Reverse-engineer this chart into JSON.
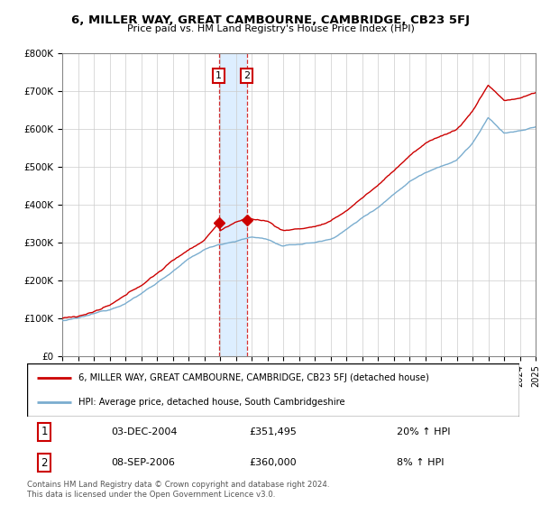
{
  "title": "6, MILLER WAY, GREAT CAMBOURNE, CAMBRIDGE, CB23 5FJ",
  "subtitle": "Price paid vs. HM Land Registry's House Price Index (HPI)",
  "legend_line1": "6, MILLER WAY, GREAT CAMBOURNE, CAMBRIDGE, CB23 5FJ (detached house)",
  "legend_line2": "HPI: Average price, detached house, South Cambridgeshire",
  "sale1_date": "03-DEC-2004",
  "sale1_price": "£351,495",
  "sale1_hpi": "20% ↑ HPI",
  "sale1_year": 2004.92,
  "sale2_date": "08-SEP-2006",
  "sale2_price": "£360,000",
  "sale2_hpi": "8% ↑ HPI",
  "sale2_year": 2006.69,
  "red_color": "#cc0000",
  "blue_color": "#7aadcf",
  "shade_color": "#ddeeff",
  "footer": "Contains HM Land Registry data © Crown copyright and database right 2024.\nThis data is licensed under the Open Government Licence v3.0.",
  "ylim_min": 0,
  "ylim_max": 800000,
  "xmin": 1995,
  "xmax": 2025
}
